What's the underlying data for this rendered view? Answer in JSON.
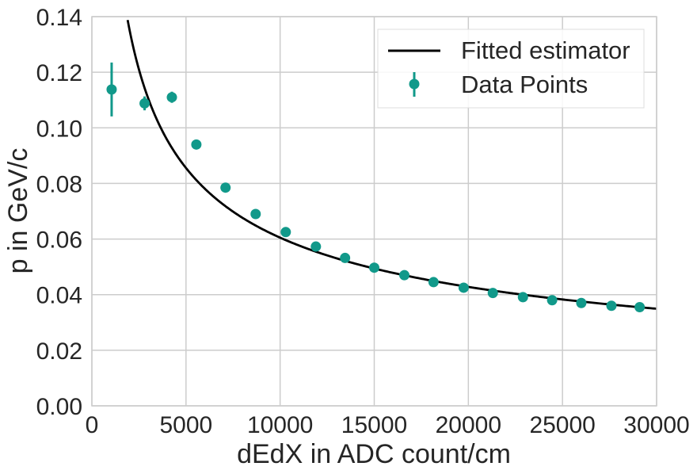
{
  "chart_data": {
    "type": "scatter",
    "title": "",
    "xlabel": "dEdX in ADC count/cm",
    "ylabel": "p in GeV/c",
    "xlim": [
      0,
      30000
    ],
    "ylim": [
      0,
      0.14
    ],
    "x_ticks": [
      0,
      5000,
      10000,
      15000,
      20000,
      25000,
      30000
    ],
    "x_tick_labels": [
      "0",
      "5000",
      "10000",
      "15000",
      "20000",
      "25000",
      "30000"
    ],
    "y_ticks": [
      0.0,
      0.02,
      0.04,
      0.06,
      0.08,
      0.1,
      0.12,
      0.14
    ],
    "y_tick_labels": [
      "0.00",
      "0.02",
      "0.04",
      "0.06",
      "0.08",
      "0.10",
      "0.12",
      "0.14"
    ],
    "grid": true,
    "legend_position": "top-right",
    "colors": {
      "points": "#11998a",
      "fit": "#000000",
      "grid": "#cccccc",
      "axes": "#cccccc",
      "text": "#262626"
    },
    "series": [
      {
        "name": "Fitted estimator",
        "kind": "line",
        "model": "p = A / sqrt(dEdX)",
        "A": 6.05
      },
      {
        "name": "Data Points",
        "kind": "errorbar",
        "points": [
          {
            "x": 1050,
            "y": 0.1138,
            "err": 0.0097
          },
          {
            "x": 2800,
            "y": 0.1088,
            "err": 0.0025
          },
          {
            "x": 4250,
            "y": 0.111,
            "err": 0.002
          },
          {
            "x": 5550,
            "y": 0.094,
            "err": 0.0007
          },
          {
            "x": 7100,
            "y": 0.0785,
            "err": 0.0004
          },
          {
            "x": 8700,
            "y": 0.069,
            "err": 0.0003
          },
          {
            "x": 10300,
            "y": 0.0625,
            "err": 0.0003
          },
          {
            "x": 11900,
            "y": 0.0573,
            "err": 0.0002
          },
          {
            "x": 13450,
            "y": 0.0532,
            "err": 0.0002
          },
          {
            "x": 15000,
            "y": 0.0497,
            "err": 0.0002
          },
          {
            "x": 16600,
            "y": 0.047,
            "err": 0.0002
          },
          {
            "x": 18150,
            "y": 0.0445,
            "err": 0.0002
          },
          {
            "x": 19750,
            "y": 0.0425,
            "err": 0.0002
          },
          {
            "x": 21300,
            "y": 0.0406,
            "err": 0.0002
          },
          {
            "x": 22900,
            "y": 0.0391,
            "err": 0.0002
          },
          {
            "x": 24450,
            "y": 0.038,
            "err": 0.0002
          },
          {
            "x": 26000,
            "y": 0.037,
            "err": 0.0002
          },
          {
            "x": 27600,
            "y": 0.036,
            "err": 0.0002
          },
          {
            "x": 29100,
            "y": 0.0355,
            "err": 0.0002
          }
        ]
      }
    ]
  }
}
